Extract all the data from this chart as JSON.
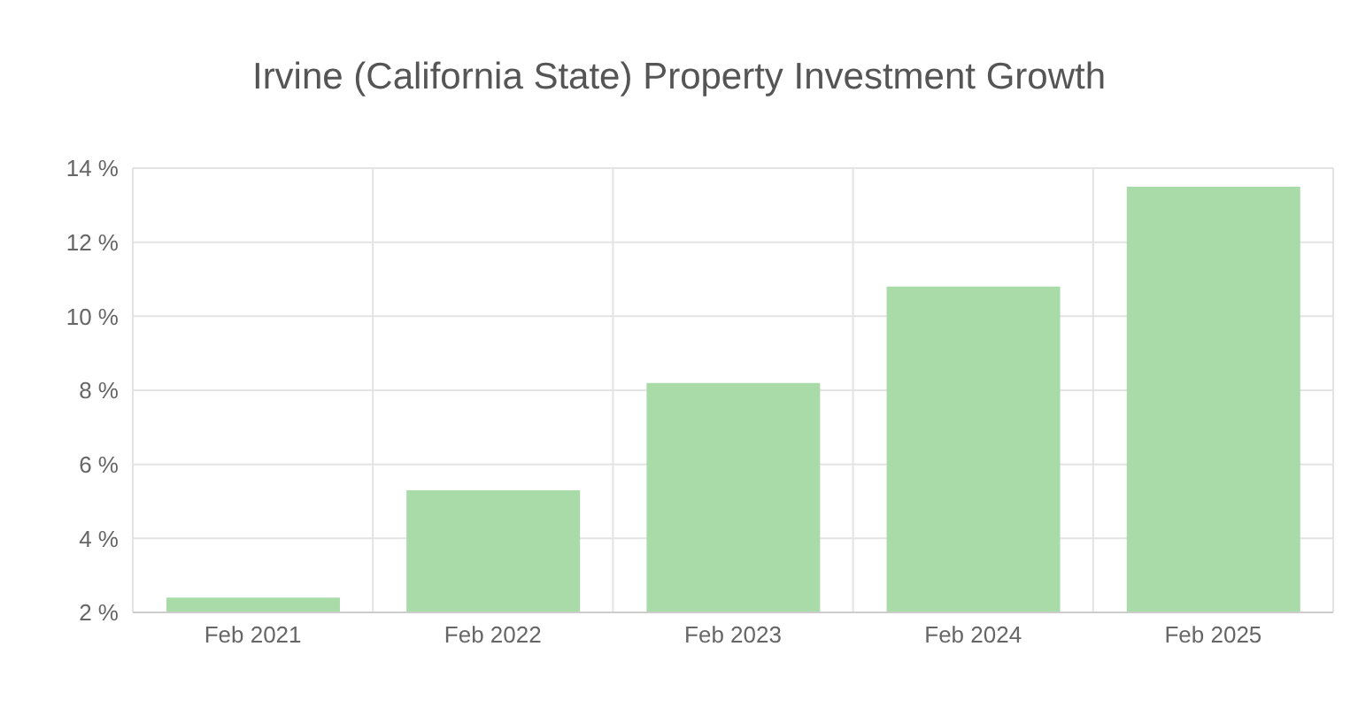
{
  "chart_data": {
    "type": "bar",
    "title": "Irvine (California State) Property Investment Growth",
    "categories": [
      "Feb 2021",
      "Feb 2022",
      "Feb 2023",
      "Feb 2024",
      "Feb 2025"
    ],
    "values": [
      2.4,
      5.3,
      8.2,
      10.8,
      13.5
    ],
    "color": "#a8dba8",
    "ylim": [
      2,
      14
    ],
    "yticks": [
      {
        "value": 2,
        "label": "2 %"
      },
      {
        "value": 4,
        "label": "4 %"
      },
      {
        "value": 6,
        "label": "6 %"
      },
      {
        "value": 8,
        "label": "8 %"
      },
      {
        "value": 10,
        "label": "10 %"
      },
      {
        "value": 12,
        "label": "12 %"
      },
      {
        "value": 14,
        "label": "14 %"
      }
    ],
    "grid": true
  }
}
